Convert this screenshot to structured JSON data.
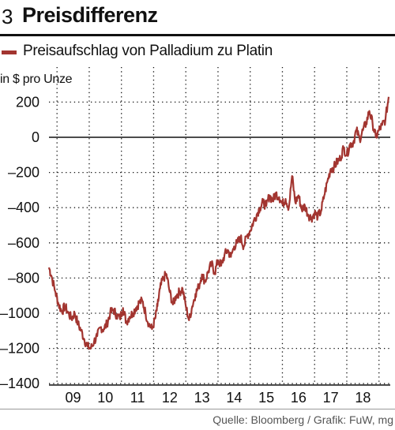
{
  "header": {
    "number": "3",
    "title": "Preisdifferenz"
  },
  "legend": {
    "label": "Preisaufschlag von Palladium zu Platin"
  },
  "source": "Quelle: Bloomberg / Grafik: FuW, mg",
  "colors": {
    "series": "#a23530",
    "zero_line": "#111111",
    "grid": "#111111"
  },
  "chart_data": {
    "type": "line",
    "ylabel": "in $ pro Unze",
    "xlabel": "",
    "ylim": [
      -1400,
      250
    ],
    "xlim": [
      2008.25,
      2018.85
    ],
    "y_ticks": [
      200,
      0,
      -200,
      -400,
      -600,
      -800,
      -1000,
      -1200,
      -1400
    ],
    "y_tick_labels": [
      "200",
      "0",
      "–200",
      "–400",
      "–600",
      "–800",
      "–1000",
      "–1200",
      "–1400"
    ],
    "x_tick_labels": [
      "09",
      "10",
      "11",
      "12",
      "13",
      "14",
      "15",
      "16",
      "17",
      "18"
    ],
    "x_tick_positions": [
      2009.0,
      2010.0,
      2011.0,
      2012.0,
      2013.0,
      2014.0,
      2015.0,
      2016.0,
      2017.0,
      2018.0
    ],
    "grid": "dotted",
    "series": [
      {
        "name": "Preisaufschlag von Palladium zu Platin",
        "x": [
          2008.25,
          2008.33,
          2008.45,
          2008.55,
          2008.65,
          2008.75,
          2008.85,
          2008.95,
          2009.05,
          2009.15,
          2009.25,
          2009.35,
          2009.45,
          2009.55,
          2009.65,
          2009.75,
          2009.85,
          2009.95,
          2010.05,
          2010.15,
          2010.25,
          2010.35,
          2010.45,
          2010.55,
          2010.65,
          2010.75,
          2010.85,
          2010.95,
          2011.05,
          2011.15,
          2011.25,
          2011.35,
          2011.45,
          2011.55,
          2011.62,
          2011.7,
          2011.8,
          2011.9,
          2012.0,
          2012.1,
          2012.2,
          2012.3,
          2012.4,
          2012.5,
          2012.6,
          2012.7,
          2012.8,
          2012.9,
          2013.0,
          2013.1,
          2013.2,
          2013.3,
          2013.4,
          2013.5,
          2013.6,
          2013.7,
          2013.8,
          2013.9,
          2014.0,
          2014.1,
          2014.2,
          2014.3,
          2014.4,
          2014.5,
          2014.6,
          2014.7,
          2014.8,
          2014.9,
          2015.0,
          2015.1,
          2015.2,
          2015.3,
          2015.4,
          2015.5,
          2015.6,
          2015.7,
          2015.8,
          2015.9,
          2016.0,
          2016.1,
          2016.2,
          2016.3,
          2016.4,
          2016.5,
          2016.6,
          2016.7,
          2016.8,
          2016.9,
          2017.0,
          2017.1,
          2017.2,
          2017.3,
          2017.4,
          2017.5,
          2017.6,
          2017.7,
          2017.8,
          2017.9,
          2018.0,
          2018.1,
          2018.2,
          2018.3,
          2018.4,
          2018.5,
          2018.6,
          2018.7,
          2018.8
        ],
        "values": [
          -740,
          -790,
          -880,
          -950,
          -990,
          -960,
          -1000,
          -1030,
          -1000,
          -1060,
          -1100,
          -1150,
          -1190,
          -1200,
          -1160,
          -1130,
          -1080,
          -1090,
          -1060,
          -1000,
          -980,
          -1010,
          -1030,
          -970,
          -1050,
          -1020,
          -1000,
          -970,
          -940,
          -930,
          -1000,
          -1060,
          -1090,
          -1030,
          -960,
          -860,
          -800,
          -780,
          -880,
          -950,
          -900,
          -880,
          -860,
          -960,
          -1040,
          -960,
          -890,
          -850,
          -780,
          -820,
          -760,
          -720,
          -770,
          -700,
          -730,
          -670,
          -640,
          -680,
          -620,
          -600,
          -570,
          -620,
          -560,
          -530,
          -480,
          -440,
          -400,
          -370,
          -390,
          -330,
          -360,
          -320,
          -340,
          -380,
          -350,
          -400,
          -220,
          -370,
          -330,
          -410,
          -390,
          -440,
          -460,
          -430,
          -450,
          -420,
          -330,
          -250,
          -180,
          -170,
          -140,
          -120,
          -60,
          -100,
          -40,
          -30,
          40,
          -10,
          40,
          80,
          150,
          80,
          0,
          40,
          70,
          100,
          230
        ]
      }
    ]
  }
}
